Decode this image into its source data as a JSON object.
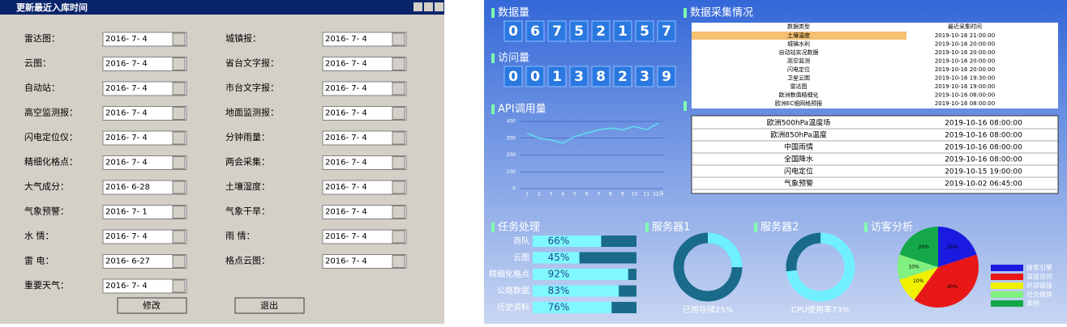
{
  "dialog": {
    "title": "更新最近入库时间",
    "fields": [
      {
        "label": "雷达图：",
        "date": "2016- 7- 4"
      },
      {
        "label": "城镇报：",
        "date": "2016- 7- 4"
      },
      {
        "label": "云图：",
        "date": "2016- 7- 4"
      },
      {
        "label": "省台文字报：",
        "date": "2016- 7- 4"
      },
      {
        "label": "自动站：",
        "date": "2016- 7- 4"
      },
      {
        "label": "市台文字报：",
        "date": "2016- 7- 4"
      },
      {
        "label": "高空监测报：",
        "date": "2016- 7- 4"
      },
      {
        "label": "地面监测报：",
        "date": "2016- 7- 4"
      },
      {
        "label": "闪电定位仪：",
        "date": "2016- 7- 4"
      },
      {
        "label": "分钟雨量：",
        "date": "2016- 7- 4"
      },
      {
        "label": "精细化格点：",
        "date": "2016- 7- 4"
      },
      {
        "label": "两会采集：",
        "date": "2016- 7- 4"
      },
      {
        "label": "大气成分：",
        "date": "2016- 6-28"
      },
      {
        "label": "土壤湿度：",
        "date": "2016- 7- 4"
      },
      {
        "label": "气象预警：",
        "date": "2016- 7- 1"
      },
      {
        "label": "气象干旱：",
        "date": "2016- 7- 4"
      },
      {
        "label": "水  情：",
        "date": "2016- 7- 4"
      },
      {
        "label": "雨  情：",
        "date": "2016- 7- 4"
      },
      {
        "label": "雷  电：",
        "date": "2016- 6-27"
      },
      {
        "label": "格点云图：",
        "date": "2016- 7- 4"
      },
      {
        "label": "重要天气：",
        "date": "2016- 7- 4"
      }
    ],
    "buttons": [
      "修改",
      "退出"
    ]
  },
  "dashboard": {
    "data_count": {
      "title": "数据量",
      "digits": [
        "0",
        "6",
        "7",
        "5",
        "2",
        "1",
        "5",
        "7"
      ]
    },
    "visits": {
      "title": "访问量",
      "digits": [
        "0",
        "0",
        "1",
        "3",
        "8",
        "2",
        "3",
        "9"
      ]
    },
    "api_chart": {
      "type": "line",
      "title": "API调用量",
      "categories": [
        "1",
        "2",
        "3",
        "4",
        "5",
        "6",
        "7",
        "8",
        "9",
        "10",
        "11",
        "12月"
      ],
      "values": [
        330,
        300,
        290,
        270,
        310,
        330,
        350,
        360,
        350,
        370,
        350,
        390
      ],
      "ylim": [
        0,
        400
      ],
      "yticks": [
        0,
        100,
        200,
        300,
        400
      ],
      "color": "#5fe0f0"
    },
    "collection": {
      "title": "数据采集情况",
      "columns": [
        "数据类型",
        "最近采集时间"
      ],
      "rows": [
        [
          "土壤温度",
          "2019-10-16 21:00:00"
        ],
        [
          "城镇水利",
          "2019-10-16 20:00:00"
        ],
        [
          "自动站实况数据",
          "2019-10-16 20:00:00"
        ],
        [
          "高空监测",
          "2019-10-16 20:00:00"
        ],
        [
          "闪电定位",
          "2019-10-16 20:00:00"
        ],
        [
          "卫星云图",
          "2019-10-16 19:30:00"
        ],
        [
          "雷达图",
          "2019-10-16 19:00:00"
        ],
        [
          "欧洲数值精细化",
          "2019-10-16 08:00:00"
        ],
        [
          "欧洲EC细网格预报",
          "2019-10-16 08:00:00"
        ]
      ]
    },
    "collection2": {
      "rows": [
        [
          "欧洲500hPa温度场",
          "2019-10-16 08:00:00"
        ],
        [
          "欧洲850hPa温度",
          "2019-10-16 08:00:00"
        ],
        [
          "中国雨情",
          "2019-10-16 08:00:00"
        ],
        [
          "全国降水",
          "2019-10-16 08:00:00"
        ],
        [
          "闪电定位",
          "2019-10-15 19:00:00"
        ],
        [
          "气象预警",
          "2019-10-02 06:45:00"
        ]
      ]
    },
    "tasks": {
      "type": "bar",
      "title": "任务处理",
      "categories": [
        "商队",
        "云图",
        "精细化格点",
        "公路数据",
        "历史资料"
      ],
      "values": [
        66,
        45,
        92,
        83,
        76
      ],
      "value_labels": [
        "66%",
        "45%",
        "92%",
        "83%",
        "76%"
      ],
      "xlim": [
        0,
        100
      ]
    },
    "servers": [
      {
        "type": "donut",
        "title": "服务器1",
        "value": 25,
        "caption": "已用存储25%"
      },
      {
        "type": "donut",
        "title": "服务器2",
        "value": 73,
        "caption": "CPU使用率73%"
      }
    ],
    "visitors": {
      "type": "pie",
      "title": "访客分析",
      "categories": [
        "搜索引擎",
        "直接访问",
        "外部链接",
        "社交媒体",
        "其他"
      ],
      "values": [
        20,
        40,
        10,
        10,
        20
      ],
      "value_labels": [
        "20%",
        "40%",
        "10%",
        "10%",
        "20%"
      ],
      "colors": [
        "#1a1ae0",
        "#e81818",
        "#f0f000",
        "#80f080",
        "#14a84a"
      ]
    }
  }
}
